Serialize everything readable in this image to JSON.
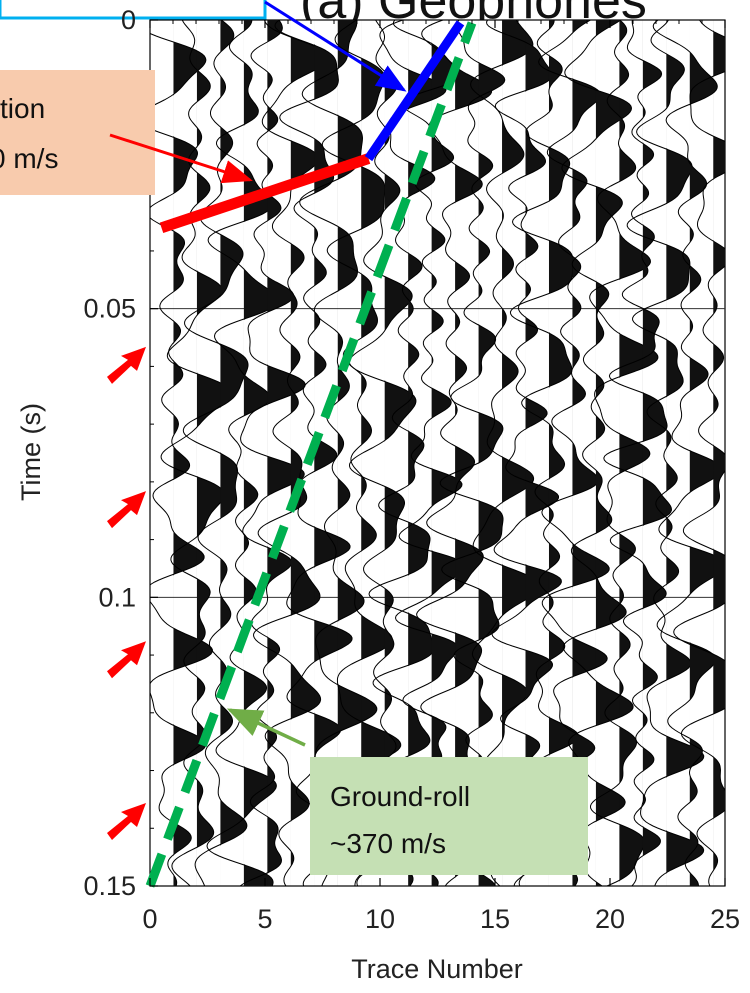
{
  "chart_data": {
    "type": "seismic wiggle plot",
    "title_fragment": "(a) Geophones",
    "xlabel": "Trace Number",
    "ylabel": "Time (s)",
    "xlim": [
      0,
      25
    ],
    "ylim": [
      0,
      0.15
    ],
    "y_inverted": true,
    "x_ticks": [
      0,
      5,
      10,
      15,
      20,
      25
    ],
    "x_tick_labels": [
      "0",
      "5",
      "10",
      "15",
      "20",
      "25"
    ],
    "y_ticks": [
      0,
      0.05,
      0.1,
      0.15
    ],
    "y_tick_labels": [
      "0",
      "0.05",
      "0.1",
      "0.15"
    ],
    "grid": "horizontal lines at major y ticks",
    "trace_count": 24,
    "wiggle_fill": "positive lobes filled black",
    "annotations": [
      {
        "name": "refraction",
        "text_lines": [
          "tion",
          "0 m/s"
        ],
        "color": "#f8cbad",
        "line_color": "#ff0000",
        "line_from": {
          "x": 0.5,
          "y": 0.036
        },
        "line_to": {
          "x": 9.5,
          "y": 0.024
        }
      },
      {
        "name": "direct",
        "text_lines": [],
        "color": "#0000ff",
        "line_from": {
          "x": 9.5,
          "y": 0.024
        },
        "line_to": {
          "x": 13.5,
          "y": 0.0005
        }
      },
      {
        "name": "ground-roll",
        "text_lines": [
          "Ground-roll",
          "~370 m/s"
        ],
        "color": "#c5e0b4",
        "line_color": "#00b050",
        "line_from": {
          "x": 0,
          "y": 0.15
        },
        "line_to": {
          "x": 14,
          "y": 0.0005
        }
      }
    ],
    "red_arrow_markers_time": [
      0.058,
      0.083,
      0.109,
      0.137
    ],
    "colors": {
      "refraction": "#ff0000",
      "direct": "#0000ff",
      "ground_roll": "#00b050",
      "arrow": "#ff0000",
      "ground_roll_arrow": "#70ad47"
    }
  }
}
